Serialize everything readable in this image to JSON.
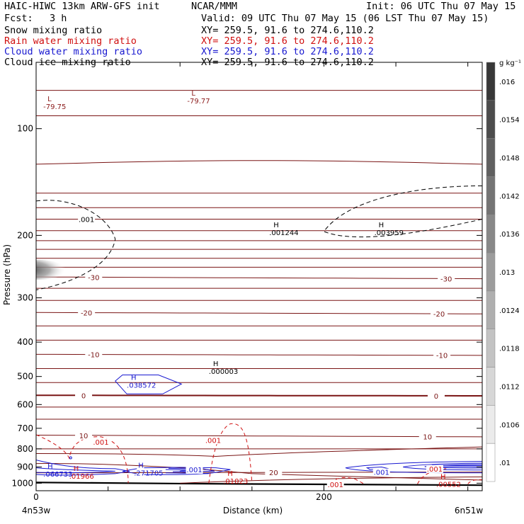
{
  "header": {
    "line1_left": "HAIC-HIWC 13km ARW-GFS init",
    "line1_mid": "NCAR/MMM",
    "line1_right": "Init: 06 UTC Thu 07 May 15",
    "fcst_label": "Fcst:",
    "fcst_value": "3 h",
    "valid": "Valid: 09 UTC Thu 07 May 15 (06 LST Thu 07 May 15)"
  },
  "legend": [
    {
      "name": "Snow mixing ratio",
      "xy": "XY= 259.5, 91.6 to 274.6,110.2",
      "color": "#000000"
    },
    {
      "name": "Rain water mixing ratio",
      "xy": "XY= 259.5, 91.6 to 274.6,110.2",
      "color": "#d01010"
    },
    {
      "name": "Cloud water mixing ratio",
      "xy": "XY= 259.5, 91.6 to 274.6,110.2",
      "color": "#1818d0"
    },
    {
      "name": "Cloud ice mixing ratio",
      "xy": "XY= 259.5, 91.6 to 274.6,110.2",
      "color": "#000000"
    }
  ],
  "chart_data": {
    "type": "contour",
    "xlabel": "Distance (km)",
    "ylabel": "Pressure (hPa)",
    "xlim": [
      0,
      310
    ],
    "x_ticks": [
      0,
      200
    ],
    "x_minor_step": 50,
    "ylim": [
      1050,
      65
    ],
    "y_ticks": [
      100,
      200,
      300,
      400,
      500,
      600,
      700,
      800,
      900,
      1000
    ],
    "corner_labels": {
      "left": "4n53w",
      "right": "6n51w"
    },
    "colorbar": {
      "unit": "g kg⁻¹",
      "ticks": [
        ".016",
        ".0154",
        ".0148",
        ".0142",
        ".0136",
        ".013",
        ".0124",
        ".0118",
        ".0112",
        ".0106",
        ".01"
      ],
      "color_top": "#383838",
      "color_bottom": "#ffffff"
    },
    "temperature_isotherms": [
      {
        "label": "-30",
        "label_x": [
          40,
          285
        ],
        "p_left": 262,
        "p_right": 265
      },
      {
        "label": "-20",
        "label_x": [
          35,
          280
        ],
        "p_left": 330,
        "p_right": 333
      },
      {
        "label": "-10",
        "label_x": [
          40,
          282
        ],
        "p_left": 433,
        "p_right": 436
      },
      {
        "label": "0",
        "label_x": [
          33,
          278
        ],
        "p_left": 565,
        "p_right": 567
      },
      {
        "label": "10",
        "label_x": [
          33,
          272
        ],
        "p_left": 732,
        "p_right": 740
      },
      {
        "label": "20",
        "label_x": [
          165
        ],
        "p_left": 935,
        "p_right": 930
      }
    ],
    "extrema": [
      {
        "kind": "L",
        "value": "-79.75",
        "x": 5,
        "p": 86,
        "color": "#8b1a1a"
      },
      {
        "kind": "L",
        "value": "-79.77",
        "x": 105,
        "p": 83,
        "color": "#8b1a1a"
      },
      {
        "kind": "H",
        "value": ".001244",
        "x": 162,
        "p": 195,
        "color": "#000000"
      },
      {
        "kind": "H",
        "value": ".003959",
        "x": 235,
        "p": 195,
        "color": "#000000"
      },
      {
        "kind": "H",
        "value": ".000003",
        "x": 120,
        "p": 480,
        "color": "#000000"
      },
      {
        "kind": "H",
        "value": ".038572",
        "x": 63,
        "p": 525,
        "color": "#1818d0"
      },
      {
        "kind": "H",
        "value": ".066733",
        "x": 5,
        "p": 935,
        "color": "#1818d0"
      },
      {
        "kind": "H",
        "value": ".271705",
        "x": 68,
        "p": 930,
        "color": "#1818d0"
      },
      {
        "kind": "H",
        "value": ".01966",
        "x": 23,
        "p": 950,
        "color": "#d01010"
      },
      {
        "kind": "H",
        "value": ".01023",
        "x": 130,
        "p": 980,
        "color": "#d01010"
      },
      {
        "kind": "H",
        "value": ".00552",
        "x": 278,
        "p": 1000,
        "color": "#d01010"
      }
    ],
    "contour_labels": [
      {
        "text": ".001",
        "x": 35,
        "p": 180,
        "color": "#000000"
      },
      {
        "text": ".001",
        "x": 45,
        "p": 765,
        "color": "#d01010"
      },
      {
        "text": ".001",
        "x": 123,
        "p": 755,
        "color": "#d01010"
      },
      {
        "text": ".001",
        "x": 110,
        "p": 915,
        "color": "#1818d0"
      },
      {
        "text": ".001",
        "x": 240,
        "p": 930,
        "color": "#1818d0"
      },
      {
        "text": ".001",
        "x": 277,
        "p": 910,
        "color": "#d01010"
      },
      {
        "text": ".001",
        "x": 208,
        "p": 1008,
        "color": "#d01010"
      }
    ]
  }
}
